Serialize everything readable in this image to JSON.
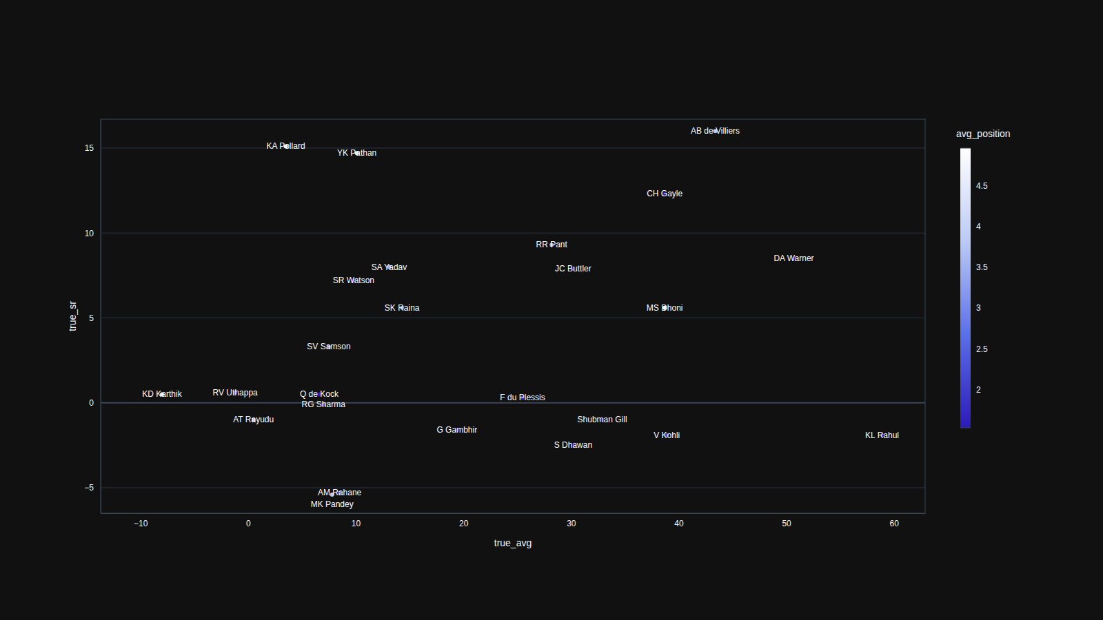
{
  "chart_data": {
    "type": "scatter",
    "x_label": "true_avg",
    "y_label": "true_sr",
    "labels": [
      "AB de Villiers",
      "KA Pollard",
      "YK Pathan",
      "CH Gayle",
      "RR Pant",
      "DA Warner",
      "JC Buttler",
      "SA Yadav",
      "SR Watson",
      "SK Raina",
      "MS Dhoni",
      "SV Samson",
      "KD Karthik",
      "RV Uthappa",
      "Q de Kock",
      "RG Sharma",
      "F du Plessis",
      "AT Rayudu",
      "G Gambhir",
      "Shubman Gill",
      "V Kohli",
      "S Dhawan",
      "KL Rahul",
      "AM Rahane",
      "MK Pandey"
    ],
    "x": [
      43.4,
      3.5,
      10.1,
      38.7,
      28.2,
      50.7,
      30.2,
      13.1,
      9.8,
      14.3,
      38.7,
      7.5,
      -8.0,
      -1.2,
      6.6,
      7.0,
      25.5,
      0.5,
      19.4,
      32.9,
      38.9,
      30.2,
      58.9,
      8.5,
      7.8
    ],
    "values": [
      16.0,
      15.1,
      14.7,
      12.3,
      9.3,
      8.5,
      7.9,
      8.0,
      7.2,
      5.6,
      5.6,
      3.3,
      0.5,
      0.6,
      0.5,
      -0.1,
      0.3,
      -1.0,
      -1.6,
      -1.0,
      -1.9,
      -2.5,
      -1.9,
      -5.3,
      -5.4
    ],
    "avg_position": [
      3.8,
      4.9,
      4.5,
      1.6,
      3.5,
      1.5,
      1.8,
      3.4,
      2.2,
      3.0,
      4.9,
      3.0,
      4.6,
      2.5,
      1.6,
      2.2,
      1.9,
      3.7,
      1.8,
      1.7,
      2.2,
      1.55,
      1.6,
      2.4,
      3.8
    ],
    "colorbar": {
      "title": "avg_position",
      "range": [
        1.53,
        4.96
      ],
      "ticks": [
        2,
        2.5,
        3,
        3.5,
        4,
        4.5
      ]
    },
    "xlim": [
      -13.7,
      62.9
    ],
    "ylim": [
      -6.5,
      16.7
    ],
    "xticks": [
      -10,
      0,
      10,
      20,
      30,
      40,
      50,
      60
    ],
    "yticks": [
      -5,
      0,
      5,
      10,
      15
    ],
    "grid": true
  }
}
